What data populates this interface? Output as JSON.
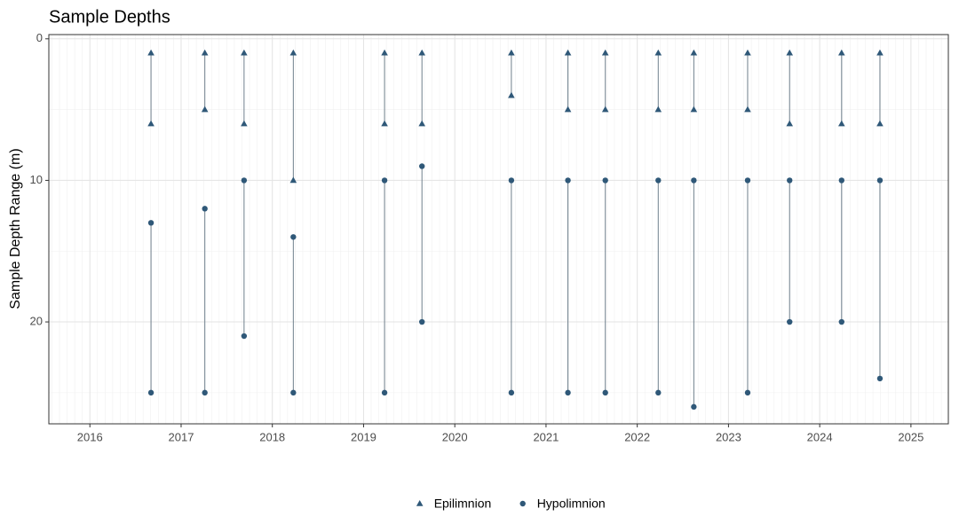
{
  "chart_data": {
    "type": "range",
    "title": "Sample Depths",
    "y_label": "Sample Depth Range (m)",
    "x": [
      2016.67,
      2017.26,
      2017.69,
      2018.23,
      2019.23,
      2019.64,
      2020.62,
      2021.24,
      2021.65,
      2022.23,
      2022.62,
      2023.21,
      2023.67,
      2024.24,
      2024.66
    ],
    "series": [
      {
        "name": "Epilimnion",
        "marker": "triangle",
        "color": "#2f5878",
        "min": [
          1,
          1,
          1,
          1,
          1,
          1,
          1,
          1,
          1,
          1,
          1,
          1,
          1,
          1,
          1
        ],
        "max": [
          6,
          5,
          6,
          10,
          6,
          6,
          4,
          5,
          5,
          5,
          5,
          5,
          6,
          6,
          6
        ]
      },
      {
        "name": "Hypolimnion",
        "marker": "circle",
        "color": "#2f5878",
        "min": [
          13,
          12,
          10,
          14,
          10,
          9,
          10,
          10,
          10,
          10,
          10,
          10,
          10,
          10,
          10
        ],
        "max": [
          25,
          25,
          21,
          25,
          25,
          20,
          25,
          25,
          25,
          25,
          26,
          25,
          20,
          20,
          24
        ]
      }
    ],
    "line_color": "#6f7f8c",
    "xlim": [
      2015.55,
      2025.41
    ],
    "xticks": [
      2016,
      2017,
      2018,
      2019,
      2020,
      2021,
      2022,
      2023,
      2024,
      2025
    ],
    "ylim": [
      -0.3,
      27.2
    ],
    "yticks": [
      0,
      10,
      20
    ],
    "y_reversed": true,
    "grid": true,
    "legend_position": "bottom"
  }
}
